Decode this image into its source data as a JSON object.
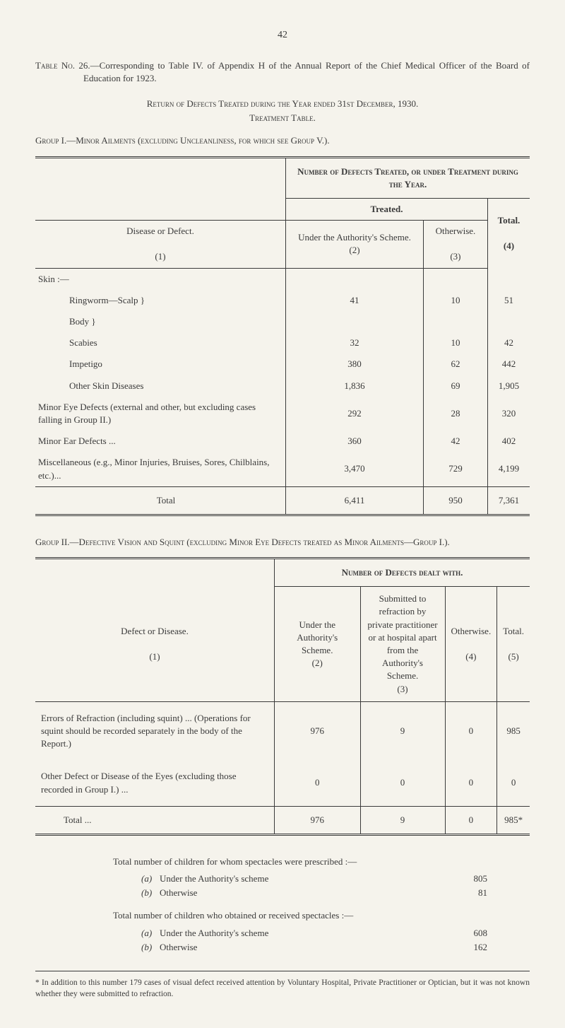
{
  "page_number": "42",
  "table_label": "Table No. 26.",
  "table_title": "—Corresponding to Table IV. of Appendix H of the Annual Report of the Chief Medical Officer of the Board of Education for 1923.",
  "return_heading": "Return of Defects Treated during the Year ended 31st December, 1930.",
  "treatment_heading": "Treatment Table.",
  "group1_heading": "Group I.—Minor Ailments (excluding Uncleanliness, for which see Group V.).",
  "group1": {
    "super_header": "Number of Defects Treated, or under Treatment during the Year.",
    "disease_header": "Disease or Defect.",
    "treated_header": "Treated.",
    "col2_header": "Under the Authority's Scheme.",
    "col3_header": "Otherwise.",
    "col4_header": "Total.",
    "col_nums": {
      "c1": "(1)",
      "c2": "(2)",
      "c3": "(3)",
      "c4": "(4)"
    },
    "skin_label": "Skin :—",
    "rows": [
      {
        "label": "Ringworm—Scalp  }",
        "indent": "indent",
        "c2": "41",
        "c3": "10",
        "c4": "51"
      },
      {
        "label": "Body  }",
        "indent": "indent",
        "c2": "",
        "c3": "",
        "c4": ""
      },
      {
        "label": "Scabies",
        "indent": "indent",
        "c2": "32",
        "c3": "10",
        "c4": "42"
      },
      {
        "label": "Impetigo",
        "indent": "indent",
        "c2": "380",
        "c3": "62",
        "c4": "442"
      },
      {
        "label": "Other Skin Diseases",
        "indent": "indent",
        "c2": "1,836",
        "c3": "69",
        "c4": "1,905"
      },
      {
        "label": "Minor Eye Defects (external and other, but excluding cases falling in Group II.)",
        "indent": "noindent",
        "c2": "292",
        "c3": "28",
        "c4": "320"
      },
      {
        "label": "Minor Ear Defects ...",
        "indent": "noindent",
        "c2": "360",
        "c3": "42",
        "c4": "402"
      },
      {
        "label": "Miscellaneous (e.g., Minor Injuries, Bruises, Sores, Chilblains, etc.)...",
        "indent": "noindent",
        "c2": "3,470",
        "c3": "729",
        "c4": "4,199"
      }
    ],
    "total": {
      "label": "Total",
      "c2": "6,411",
      "c3": "950",
      "c4": "7,361"
    }
  },
  "group2_heading": "Group II.—Defective Vision and Squint (excluding Minor Eye Defects treated as Minor Ailments—Group I.).",
  "group2": {
    "super_header": "Number of Defects dealt with.",
    "defect_header": "Defect or Disease.",
    "col2_header": "Under the Authority's Scheme.",
    "col3_header": "Submitted to refraction by private practitioner or at hospital apart from the Authority's Scheme.",
    "col4_header": "Otherwise.",
    "col5_header": "Total.",
    "col_nums": {
      "c1": "(1)",
      "c2": "(2)",
      "c3": "(3)",
      "c4": "(4)",
      "c5": "(5)"
    },
    "rows": [
      {
        "label": "Errors of Refraction (including squint) ... (Operations for squint should be recorded separately in the body of the Report.)",
        "c2": "976",
        "c3": "9",
        "c4": "0",
        "c5": "985"
      },
      {
        "label": "Other Defect or Disease of the Eyes (excluding those recorded in Group I.) ...",
        "c2": "0",
        "c3": "0",
        "c4": "0",
        "c5": "0"
      }
    ],
    "total": {
      "label": "Total ...",
      "c2": "976",
      "c3": "9",
      "c4": "0",
      "c5": "985*"
    }
  },
  "spectacles": {
    "prescribed_heading": "Total number of children for whom spectacles were prescribed :—",
    "received_heading": "Total number of children who obtained or received spectacles :—",
    "prescribed": [
      {
        "letter": "(a)",
        "text": "Under the Authority's scheme",
        "value": "805"
      },
      {
        "letter": "(b)",
        "text": "Otherwise",
        "value": "81"
      }
    ],
    "received": [
      {
        "letter": "(a)",
        "text": "Under the Authority's scheme",
        "value": "608"
      },
      {
        "letter": "(b)",
        "text": "Otherwise",
        "value": "162"
      }
    ]
  },
  "footnote": "* In addition to this number 179 cases of visual defect received attention by Voluntary Hospital, Private Practitioner or Optician, but it was not known whether they were submitted to refraction."
}
